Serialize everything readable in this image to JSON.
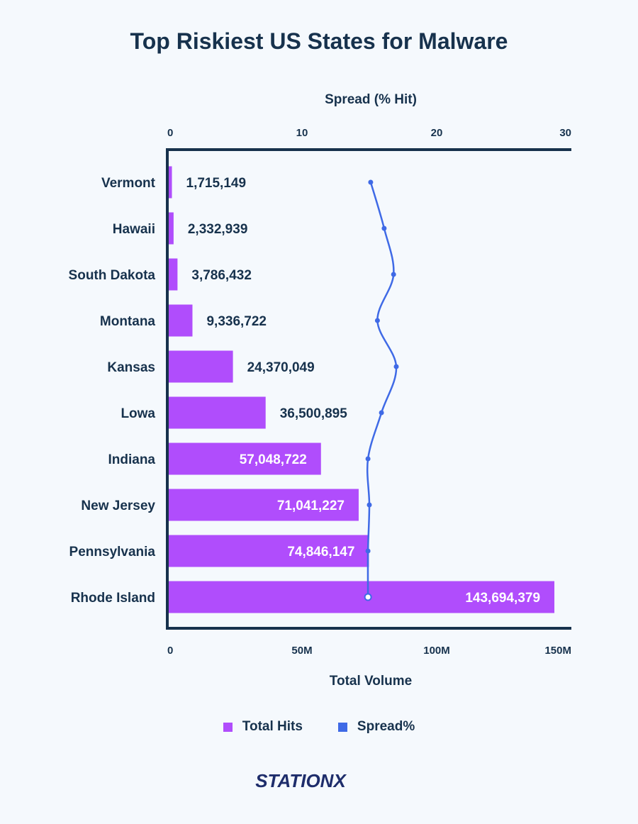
{
  "title": "Top Riskiest US States for Malware",
  "colors": {
    "hits": "#b04dfc",
    "spread": "#3f6ae6",
    "axis": "#17324d"
  },
  "legend": {
    "hits": "Total Hits",
    "spread": "Spread%"
  },
  "logo": {
    "text": "STATIONX"
  },
  "chart_data": {
    "type": "bar",
    "orientation": "horizontal",
    "categories": [
      "Vermont",
      "Hawaii",
      "South Dakota",
      "Montana",
      "Kansas",
      "Lowa",
      "Indiana",
      "New Jersey",
      "Pennsylvania",
      "Rhode Island"
    ],
    "series": [
      {
        "name": "Total Hits",
        "type": "bar",
        "axis": "bottom",
        "values": [
          1715149,
          2332939,
          3786432,
          9336722,
          24370049,
          36500895,
          57048722,
          71041227,
          74846147,
          143694379
        ],
        "labels": [
          "1,715,149",
          "2,332,939",
          "3,786,432",
          "9,336,722",
          "24,370,049",
          "36,500,895",
          "57,048,722",
          "71,041,227",
          "74,846,147",
          "143,694,379"
        ]
      },
      {
        "name": "Spread%",
        "type": "line",
        "axis": "top",
        "values": [
          15.1,
          16.1,
          16.8,
          15.6,
          17.0,
          15.9,
          14.9,
          15.0,
          14.9,
          14.9
        ]
      }
    ],
    "bottom_axis": {
      "label": "Total Volume",
      "range": [
        0,
        150000000
      ],
      "ticks": [
        0,
        50000000,
        100000000,
        150000000
      ],
      "tick_labels": [
        "0",
        "50M",
        "100M",
        "150M"
      ]
    },
    "top_axis": {
      "label": "Spread (% Hit)",
      "range": [
        0,
        30
      ],
      "ticks": [
        0,
        10,
        20,
        30
      ],
      "tick_labels": [
        "0",
        "10",
        "20",
        "30"
      ]
    },
    "grid": false,
    "legend_position": "bottom"
  }
}
